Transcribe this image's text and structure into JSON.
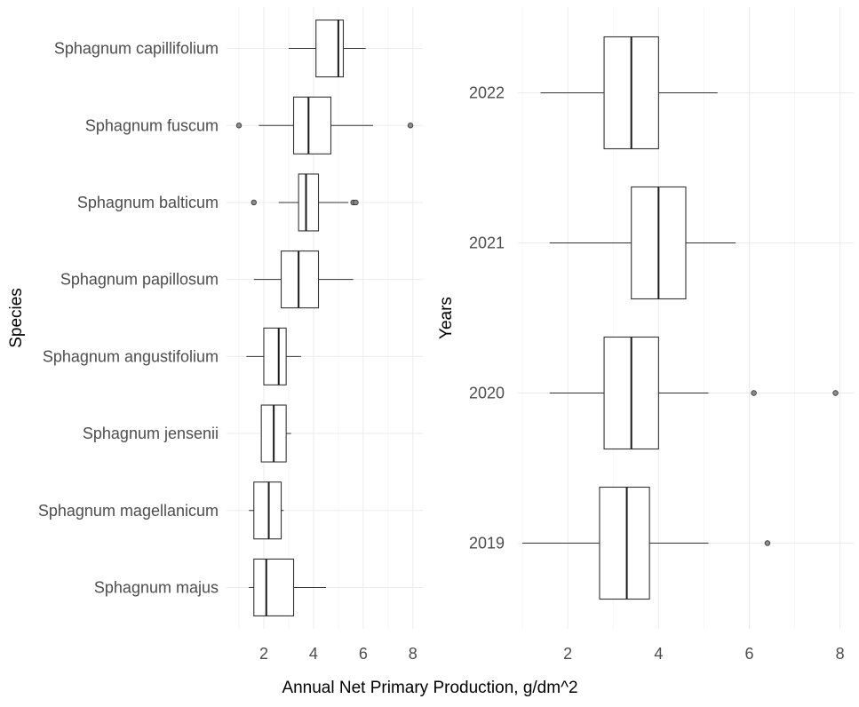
{
  "shared_xlabel": "Annual Net Primary Production, g/dm^2",
  "chart_data": [
    {
      "type": "boxplot",
      "orientation": "horizontal",
      "ylabel": "Species",
      "xlabel": "Annual Net Primary Production, g/dm^2",
      "xlim": [
        0.5,
        8.4
      ],
      "xticks": [
        2,
        4,
        6,
        8
      ],
      "grid": true,
      "categories": [
        "Sphagnum capillifolium",
        "Sphagnum fuscum",
        "Sphagnum balticum",
        "Sphagnum papillosum",
        "Sphagnum angustifolium",
        "Sphagnum jensenii",
        "Sphagnum magellanicum",
        "Sphagnum majus"
      ],
      "boxes": [
        {
          "label": "Sphagnum capillifolium",
          "whisker_low": 3.0,
          "q1": 4.1,
          "median": 5.0,
          "q3": 5.2,
          "whisker_high": 6.1,
          "outliers": []
        },
        {
          "label": "Sphagnum fuscum",
          "whisker_low": 1.8,
          "q1": 3.2,
          "median": 3.8,
          "q3": 4.7,
          "whisker_high": 6.4,
          "outliers": [
            1.0,
            7.9
          ]
        },
        {
          "label": "Sphagnum balticum",
          "whisker_low": 2.6,
          "q1": 3.4,
          "median": 3.7,
          "q3": 4.2,
          "whisker_high": 5.4,
          "outliers": [
            1.6,
            5.6,
            5.7
          ]
        },
        {
          "label": "Sphagnum papillosum",
          "whisker_low": 1.6,
          "q1": 2.7,
          "median": 3.4,
          "q3": 4.2,
          "whisker_high": 5.6,
          "outliers": []
        },
        {
          "label": "Sphagnum angustifolium",
          "whisker_low": 1.3,
          "q1": 2.0,
          "median": 2.6,
          "q3": 2.9,
          "whisker_high": 3.5,
          "outliers": []
        },
        {
          "label": "Sphagnum jensenii",
          "whisker_low": 1.9,
          "q1": 1.9,
          "median": 2.4,
          "q3": 2.9,
          "whisker_high": 3.1,
          "outliers": []
        },
        {
          "label": "Sphagnum magellanicum",
          "whisker_low": 1.4,
          "q1": 1.6,
          "median": 2.2,
          "q3": 2.7,
          "whisker_high": 2.8,
          "outliers": []
        },
        {
          "label": "Sphagnum majus",
          "whisker_low": 1.4,
          "q1": 1.6,
          "median": 2.1,
          "q3": 3.2,
          "whisker_high": 4.5,
          "outliers": []
        }
      ]
    },
    {
      "type": "boxplot",
      "orientation": "horizontal",
      "ylabel": "Years",
      "xlabel": "Annual Net Primary Production, g/dm^2",
      "xlim": [
        0.9,
        8.3
      ],
      "xticks": [
        2,
        4,
        6,
        8
      ],
      "grid": true,
      "categories": [
        "2022",
        "2021",
        "2020",
        "2019"
      ],
      "boxes": [
        {
          "label": "2022",
          "whisker_low": 1.4,
          "q1": 2.8,
          "median": 3.4,
          "q3": 4.0,
          "whisker_high": 5.3,
          "outliers": []
        },
        {
          "label": "2021",
          "whisker_low": 1.6,
          "q1": 3.4,
          "median": 4.0,
          "q3": 4.6,
          "whisker_high": 5.7,
          "outliers": []
        },
        {
          "label": "2020",
          "whisker_low": 1.6,
          "q1": 2.8,
          "median": 3.4,
          "q3": 4.0,
          "whisker_high": 5.1,
          "outliers": [
            6.1,
            7.9
          ]
        },
        {
          "label": "2019",
          "whisker_low": 1.0,
          "q1": 2.7,
          "median": 3.3,
          "q3": 3.8,
          "whisker_high": 5.1,
          "outliers": [
            6.4
          ]
        }
      ]
    }
  ]
}
